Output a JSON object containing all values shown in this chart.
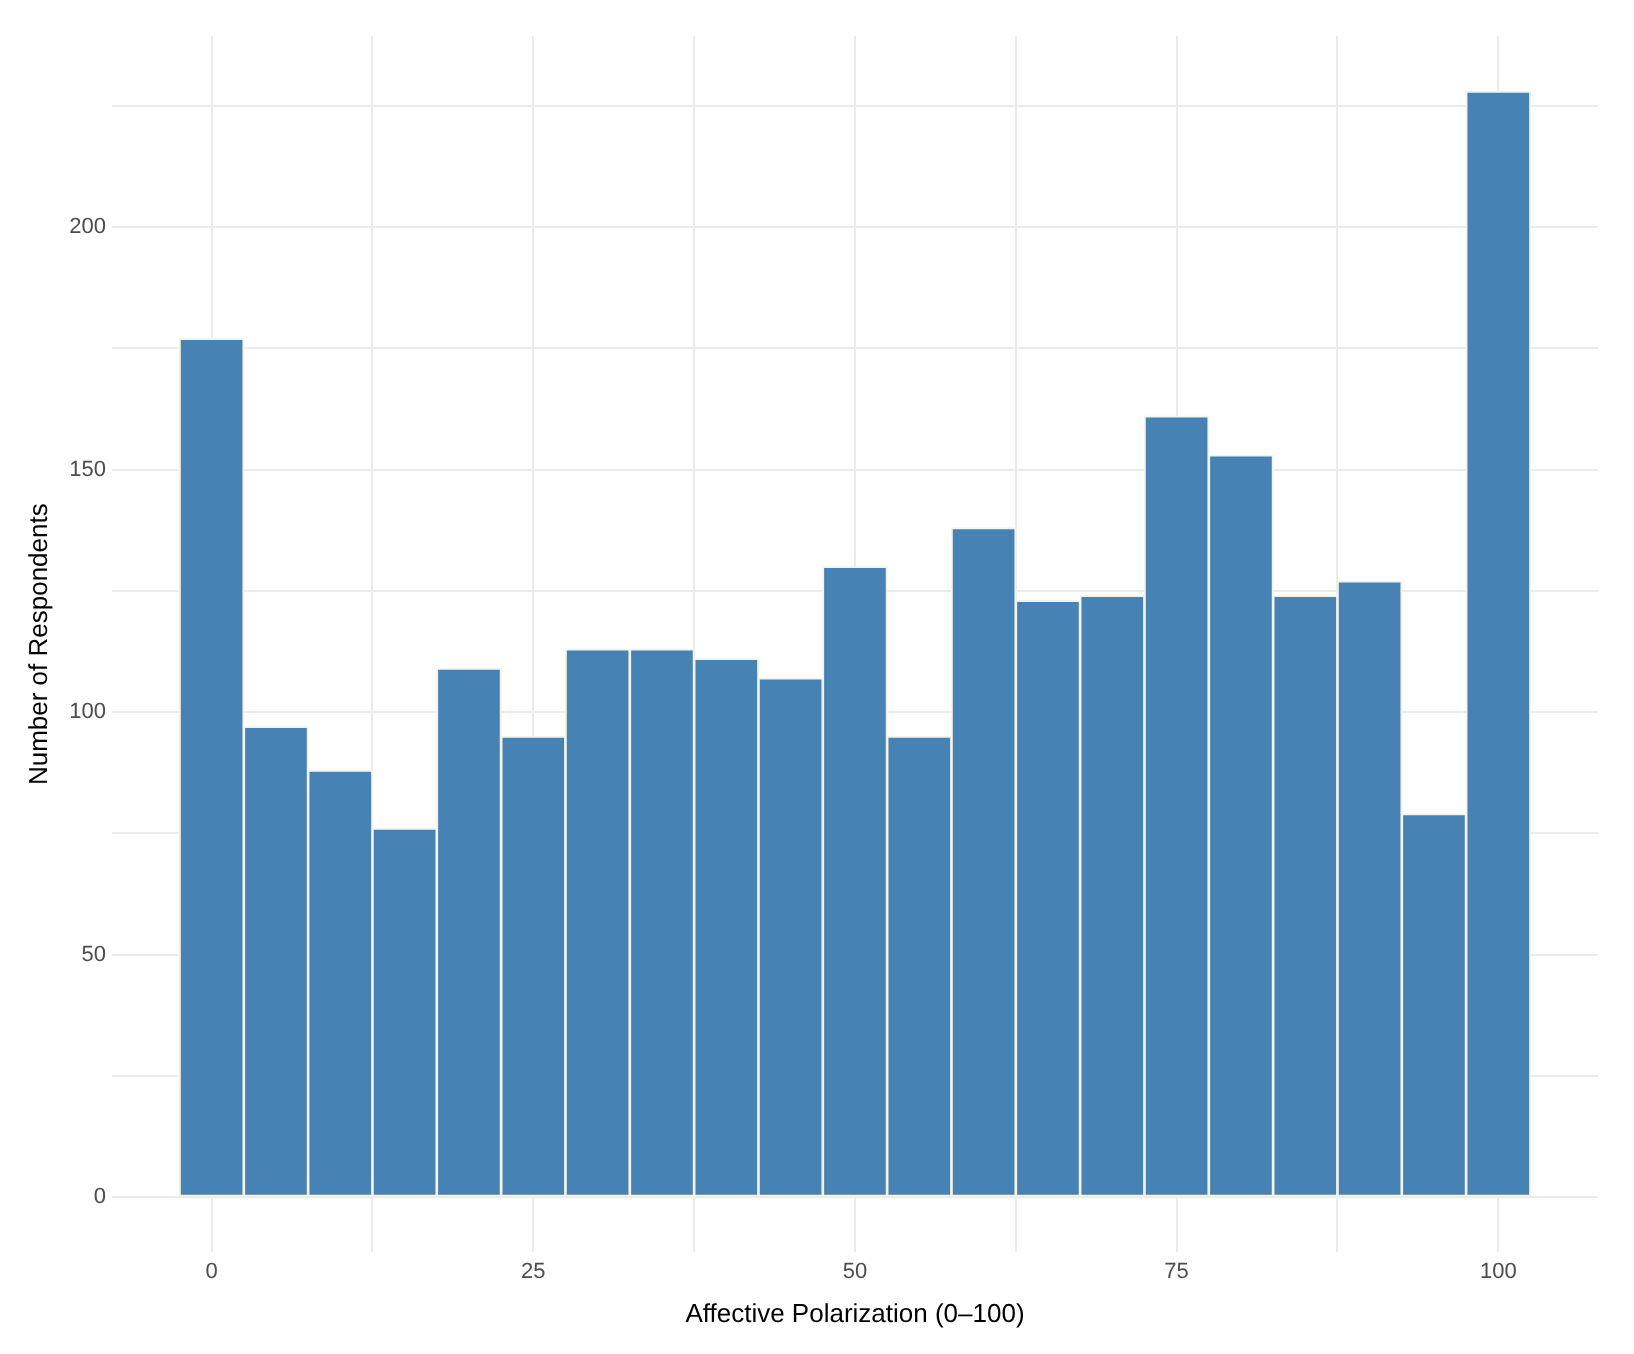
{
  "chart_data": {
    "type": "histogram",
    "xlabel": "Affective Polarization (0–100)",
    "ylabel": "Number of Respondents",
    "bins": [
      -2.5,
      2.5,
      7.5,
      12.5,
      17.5,
      22.5,
      27.5,
      32.5,
      37.5,
      42.5,
      47.5,
      52.5,
      57.5,
      62.5,
      67.5,
      72.5,
      77.5,
      82.5,
      87.5,
      92.5,
      97.5,
      102.5
    ],
    "values": [
      177,
      97,
      88,
      76,
      109,
      95,
      113,
      113,
      111,
      107,
      130,
      95,
      138,
      123,
      124,
      161,
      153,
      124,
      127,
      79,
      228
    ],
    "color": "#4682b4",
    "xlim": [
      -7.75,
      107.75
    ],
    "xticks": [
      0,
      {
        "value": 12.5,
        "label": null
      },
      25,
      {
        "value": 37.5,
        "label": null
      },
      50,
      {
        "value": 62.5,
        "label": null
      },
      75,
      {
        "value": 87.5,
        "label": null
      },
      100
    ],
    "ylim": [
      -11.4,
      239.4
    ],
    "yticks": [
      0,
      {
        "value": 25,
        "label": null
      },
      50,
      {
        "value": 75,
        "label": null
      },
      100,
      {
        "value": 125,
        "label": null
      },
      150,
      {
        "value": 175,
        "label": null
      },
      200,
      {
        "value": 225,
        "label": null
      }
    ],
    "grid": true
  }
}
